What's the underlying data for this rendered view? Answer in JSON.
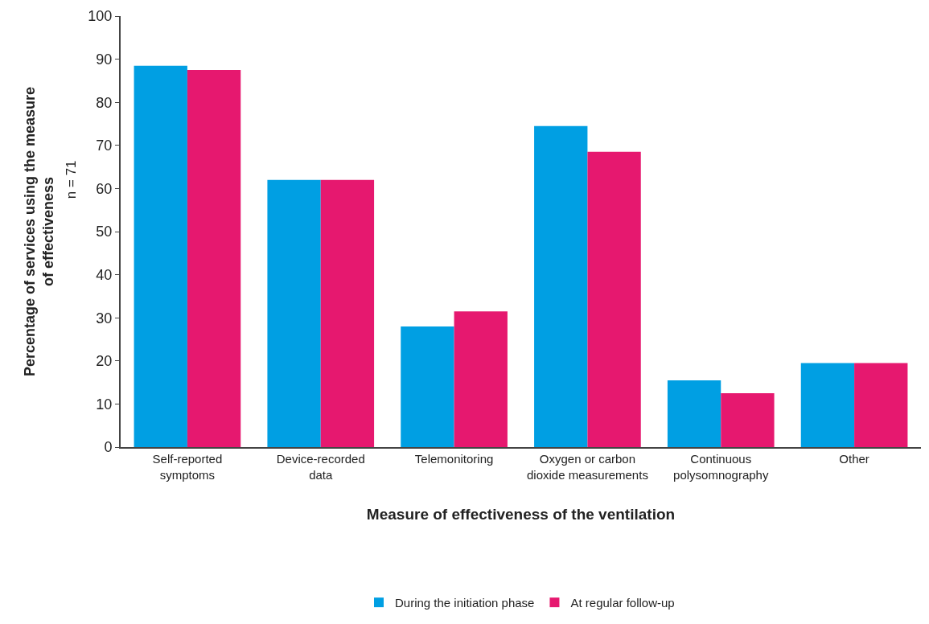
{
  "chart_data": {
    "type": "bar",
    "xlabel": "Measure of effectiveness of the ventilation",
    "ylabel": "Percentage of services using the measure\nof effectiveness",
    "annotations": [
      "n = 71"
    ],
    "categories": [
      "Self-reported\nsymptoms",
      "Device-recorded\ndata",
      "Telemonitoring",
      "Oxygen or carbon\ndioxide measurements",
      "Continuous\npolysomnography",
      "Other"
    ],
    "series": [
      {
        "name": "During the initiation phase",
        "color": "#009fe3",
        "values": [
          88.5,
          62,
          28,
          74.5,
          15.5,
          19.5
        ]
      },
      {
        "name": "At regular follow-up",
        "color": "#e6186f",
        "values": [
          87.5,
          62,
          31.5,
          68.5,
          12.5,
          19.5
        ]
      }
    ],
    "ylim": [
      0,
      100
    ],
    "yticks": [
      0,
      10,
      20,
      30,
      40,
      50,
      60,
      70,
      80,
      90,
      100
    ],
    "legend": "bottom"
  }
}
